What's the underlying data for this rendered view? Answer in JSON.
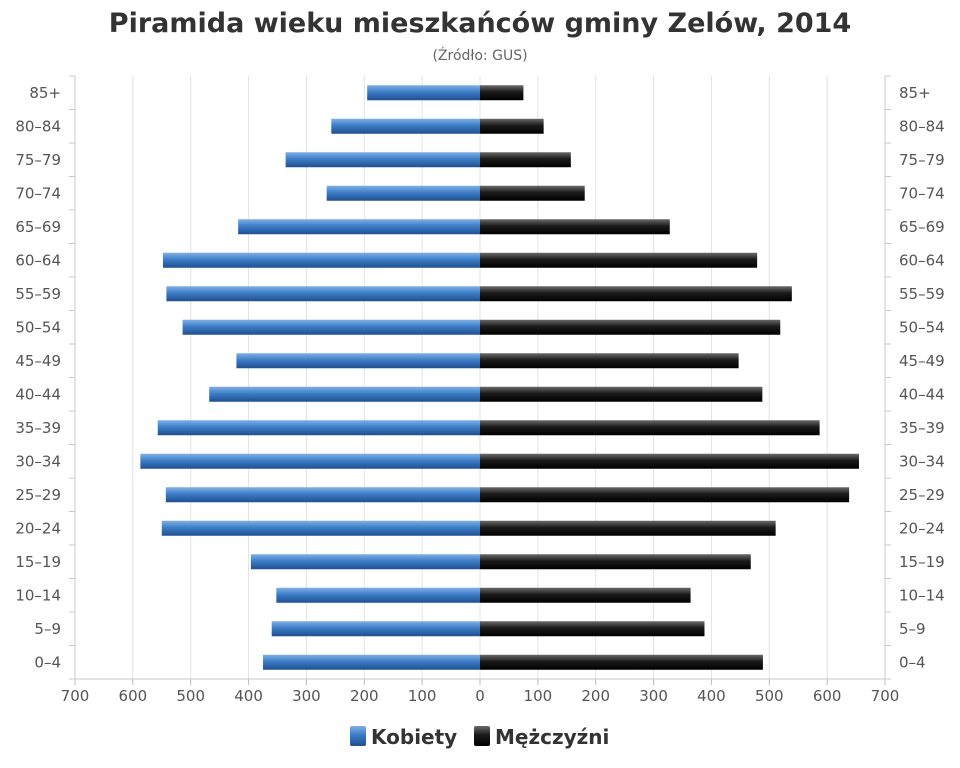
{
  "chart_data": {
    "type": "bar",
    "orientation": "horizontal-population-pyramid",
    "title": "Piramida wieku mieszkańców gminy Zelów, 2014",
    "subtitle": "(Źródło: GUS)",
    "categories": [
      "85+",
      "80–84",
      "75–79",
      "70–74",
      "65–69",
      "60–64",
      "55–59",
      "50–54",
      "45–49",
      "40–44",
      "35–39",
      "30–34",
      "25–29",
      "20–24",
      "15–19",
      "10–14",
      "5–9",
      "0–4"
    ],
    "series": [
      {
        "name": "Kobiety",
        "side": "left",
        "color": "#3d7dc7",
        "values": [
          195,
          257,
          336,
          265,
          418,
          548,
          542,
          514,
          421,
          468,
          557,
          587,
          543,
          550,
          396,
          352,
          360,
          375
        ]
      },
      {
        "name": "Mężczyźni",
        "side": "right",
        "color": "#1a1a1a",
        "values": [
          75,
          110,
          157,
          181,
          328,
          479,
          539,
          519,
          447,
          488,
          587,
          655,
          638,
          511,
          468,
          364,
          388,
          489
        ]
      }
    ],
    "xlim": [
      -700,
      700
    ],
    "x_ticks": [
      "700",
      "600",
      "500",
      "400",
      "300",
      "200",
      "100",
      "0",
      "100",
      "200",
      "300",
      "400",
      "500",
      "600",
      "700"
    ],
    "grid": true,
    "legend_position": "bottom"
  }
}
